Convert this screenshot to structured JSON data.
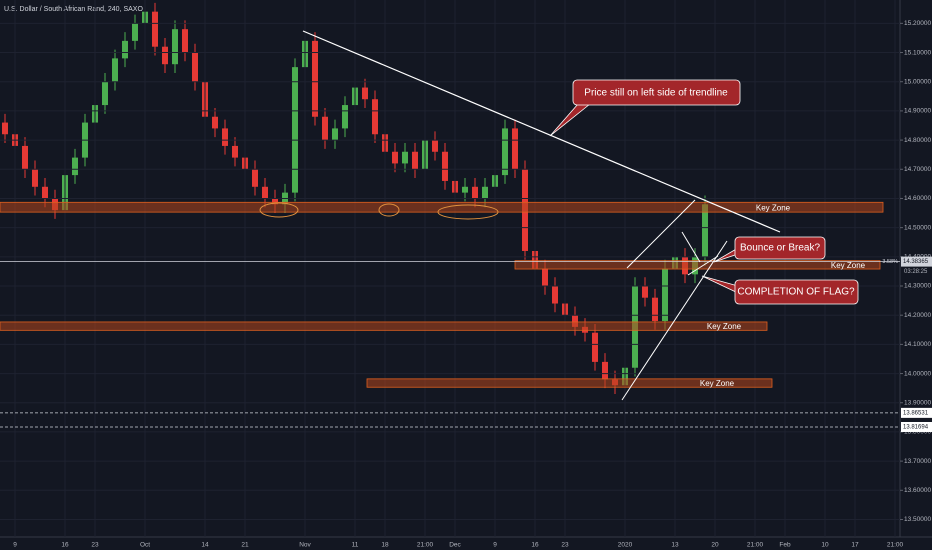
{
  "chart_data": {
    "type": "candlestick",
    "title": "U.S. Dollar / South African Rand, 240, SAXO",
    "up_color": "#4caf50",
    "down_color": "#e53935",
    "categories": [
      null,
      "9",
      null,
      null,
      null,
      null,
      "16",
      null,
      null,
      "23",
      null,
      null,
      null,
      null,
      "Oct",
      null,
      null,
      null,
      null,
      null,
      "14",
      null,
      null,
      null,
      "21",
      null,
      null,
      null,
      null,
      null,
      "Nov",
      null,
      null,
      null,
      null,
      "11",
      null,
      null,
      "18",
      null,
      null,
      null,
      "21:00",
      null,
      null,
      "Dec",
      null,
      null,
      null,
      "9",
      null,
      null,
      null,
      "16",
      null,
      null,
      "23",
      null,
      null,
      null,
      null,
      null,
      "2020",
      null,
      null,
      null,
      null,
      "13",
      null,
      null,
      null,
      "20",
      null,
      null,
      null,
      "21:00",
      null,
      null,
      "Feb",
      null,
      null,
      null,
      "10",
      null,
      null,
      "17",
      null,
      null,
      null,
      "21:00"
    ],
    "open": [
      14.86,
      14.82,
      14.78,
      14.7,
      14.64,
      14.6,
      14.56,
      14.68,
      14.74,
      14.86,
      14.92,
      15.0,
      15.08,
      15.14,
      15.2,
      15.24,
      15.12,
      15.06,
      15.18,
      15.1,
      15.0,
      14.88,
      14.84,
      14.78,
      14.74,
      14.7,
      14.64,
      14.6,
      14.58,
      14.62,
      15.05,
      15.14,
      14.88,
      14.8,
      14.84,
      14.92,
      14.98,
      14.94,
      14.82,
      14.76,
      14.72,
      14.76,
      14.7,
      14.8,
      14.76,
      14.66,
      14.62,
      14.64,
      14.6,
      14.64,
      14.68,
      14.84,
      14.7,
      14.42,
      14.36,
      14.3,
      14.24,
      14.2,
      14.16,
      14.14,
      14.04,
      13.98,
      13.96,
      14.02,
      14.3,
      14.26,
      14.18,
      14.36,
      14.4,
      14.34,
      14.4,
      null,
      null,
      null,
      null,
      null,
      null,
      null,
      null,
      null,
      null,
      null,
      null,
      null,
      null,
      null,
      null,
      null,
      null,
      null
    ],
    "high": [
      14.89,
      14.85,
      14.81,
      14.73,
      14.67,
      14.63,
      14.71,
      14.77,
      14.89,
      14.95,
      15.03,
      15.11,
      15.17,
      15.23,
      15.27,
      15.27,
      15.15,
      15.21,
      15.21,
      15.13,
      15.03,
      14.91,
      14.87,
      14.81,
      14.77,
      14.73,
      14.67,
      14.63,
      14.65,
      15.08,
      15.18,
      15.17,
      14.91,
      14.87,
      14.95,
      15.01,
      15.01,
      14.97,
      14.85,
      14.79,
      14.79,
      14.79,
      14.83,
      14.83,
      14.79,
      14.69,
      14.67,
      14.67,
      14.67,
      14.71,
      14.87,
      14.87,
      14.73,
      14.45,
      14.39,
      14.33,
      14.27,
      14.23,
      14.19,
      14.17,
      14.07,
      14.01,
      14.05,
      14.33,
      14.33,
      14.29,
      14.39,
      14.43,
      14.43,
      14.43,
      14.61,
      null,
      null,
      null,
      null,
      null,
      null,
      null,
      null,
      null,
      null,
      null,
      null,
      null,
      null,
      null,
      null,
      null,
      null,
      null
    ],
    "low": [
      14.79,
      14.75,
      14.67,
      14.61,
      14.57,
      14.53,
      14.53,
      14.65,
      14.71,
      14.83,
      14.89,
      14.97,
      15.05,
      15.11,
      15.17,
      15.09,
      15.03,
      15.03,
      15.07,
      14.97,
      14.85,
      14.81,
      14.75,
      14.71,
      14.67,
      14.61,
      14.57,
      14.55,
      14.55,
      14.59,
      15.02,
      14.85,
      14.77,
      14.77,
      14.81,
      14.89,
      14.91,
      14.79,
      14.73,
      14.69,
      14.69,
      14.67,
      14.67,
      14.73,
      14.63,
      14.59,
      14.59,
      14.57,
      14.57,
      14.61,
      14.65,
      14.67,
      14.39,
      14.33,
      14.27,
      14.21,
      14.17,
      14.13,
      14.11,
      14.01,
      13.95,
      13.93,
      13.93,
      13.99,
      14.23,
      14.15,
      14.15,
      14.33,
      14.31,
      14.31,
      14.37,
      null,
      null,
      null,
      null,
      null,
      null,
      null,
      null,
      null,
      null,
      null,
      null,
      null,
      null,
      null,
      null,
      null,
      null,
      null
    ],
    "close": [
      14.82,
      14.78,
      14.7,
      14.64,
      14.6,
      14.56,
      14.68,
      14.74,
      14.86,
      14.92,
      15.0,
      15.08,
      15.14,
      15.2,
      15.24,
      15.12,
      15.06,
      15.18,
      15.1,
      15.0,
      14.88,
      14.84,
      14.78,
      14.74,
      14.7,
      14.64,
      14.6,
      14.58,
      14.62,
      15.05,
      15.14,
      14.88,
      14.8,
      14.84,
      14.92,
      14.98,
      14.94,
      14.82,
      14.76,
      14.72,
      14.76,
      14.7,
      14.8,
      14.76,
      14.66,
      14.62,
      14.64,
      14.6,
      14.64,
      14.68,
      14.84,
      14.7,
      14.42,
      14.36,
      14.3,
      14.24,
      14.2,
      14.16,
      14.14,
      14.04,
      13.98,
      13.96,
      14.02,
      14.3,
      14.26,
      14.18,
      14.36,
      14.4,
      14.34,
      14.4,
      14.58,
      null,
      null,
      null,
      null,
      null,
      null,
      null,
      null,
      null,
      null,
      null,
      null,
      null,
      null,
      null,
      null,
      null,
      null,
      null
    ],
    "ylim": [
      13.44,
      15.28
    ],
    "yticks": [
      {
        "value": 15.2,
        "label": "15.20000"
      },
      {
        "value": 15.1,
        "label": "15.10000"
      },
      {
        "value": 15.0,
        "label": "15.00000"
      },
      {
        "value": 14.9,
        "label": "14.90000"
      },
      {
        "value": 14.8,
        "label": "14.80000"
      },
      {
        "value": 14.7,
        "label": "14.70000"
      },
      {
        "value": 14.6,
        "label": "14.60000"
      },
      {
        "value": 14.5,
        "label": "14.50000"
      },
      {
        "value": 14.4,
        "label": "14.40000"
      },
      {
        "value": 14.3,
        "label": "14.30000"
      },
      {
        "value": 14.2,
        "label": "14.20000"
      },
      {
        "value": 14.1,
        "label": "14.10000"
      },
      {
        "value": 14.0,
        "label": "14.00000"
      },
      {
        "value": 13.9,
        "label": "13.90000"
      },
      {
        "value": 13.8,
        "label": "13.80000"
      },
      {
        "value": 13.7,
        "label": "13.70000"
      },
      {
        "value": 13.6,
        "label": "13.60000"
      },
      {
        "value": 13.5,
        "label": "13.50000"
      }
    ],
    "price_lines": [
      {
        "value": 14.38365,
        "label": "14.38365",
        "change": "-3.58%",
        "timer": "03:28:25"
      },
      {
        "value": 13.86531,
        "label": "13.86531"
      },
      {
        "value": 13.81694,
        "label": "13.81694"
      }
    ],
    "zones": [
      {
        "label": "Key Zone",
        "range": [
          14.56,
          14.58
        ]
      },
      {
        "label": "Key Zone",
        "range": [
          14.365,
          14.38
        ]
      },
      {
        "label": "Key Zone",
        "range": [
          14.155,
          14.17
        ]
      },
      {
        "label": "Key Zone",
        "range": [
          13.96,
          13.975
        ]
      }
    ],
    "annotations": [
      "Price still on left side of trendline",
      "Bounce or Break?",
      "COMPLETION OF FLAG?"
    ]
  }
}
